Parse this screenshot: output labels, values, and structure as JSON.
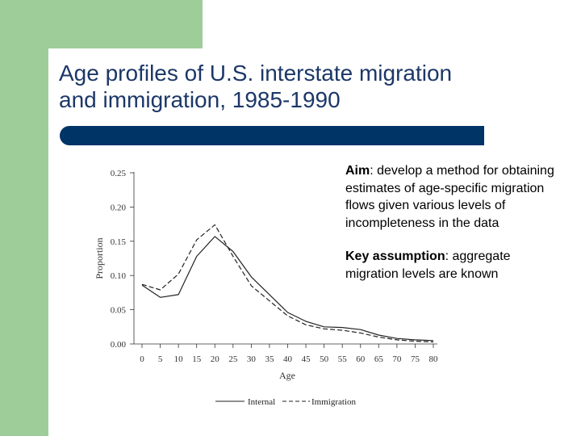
{
  "slide": {
    "title_line1": "Age profiles of U.S. interstate migration",
    "title_line2": "and immigration, 1985-1990",
    "aim_label": "Aim",
    "aim_text": ": develop a method for obtaining estimates of age-specific migration flows given various levels of incompleteness in the data",
    "key_label": "Key assumption",
    "key_text": ": aggregate migration levels are known"
  },
  "colors": {
    "accent_green": "#9fcd99",
    "rule_navy": "#003366",
    "title_blue": "#1c3768"
  },
  "chart_data": {
    "type": "line",
    "xlabel": "Age",
    "ylabel": "Proportion",
    "x": [
      0,
      5,
      10,
      15,
      20,
      25,
      30,
      35,
      40,
      45,
      50,
      55,
      60,
      65,
      70,
      75,
      80
    ],
    "xticks": [
      "0",
      "5",
      "10",
      "15",
      "20",
      "25",
      "30",
      "35",
      "40",
      "45",
      "50",
      "55",
      "60",
      "65",
      "70",
      "75",
      "80"
    ],
    "yticks": [
      "0.00",
      "0.05",
      "0.10",
      "0.15",
      "0.20",
      "0.25"
    ],
    "ylim": [
      0,
      0.25
    ],
    "series": [
      {
        "name": "Internal",
        "style": "solid",
        "values": [
          0.086,
          0.068,
          0.072,
          0.128,
          0.157,
          0.135,
          0.098,
          0.072,
          0.046,
          0.033,
          0.025,
          0.024,
          0.021,
          0.013,
          0.008,
          0.006,
          0.005
        ]
      },
      {
        "name": "Immigration",
        "style": "dashed",
        "values": [
          0.087,
          0.079,
          0.102,
          0.152,
          0.174,
          0.128,
          0.085,
          0.063,
          0.041,
          0.028,
          0.022,
          0.02,
          0.016,
          0.01,
          0.006,
          0.004,
          0.003
        ]
      }
    ],
    "legend": {
      "position": "bottom",
      "items": [
        "Internal",
        "Immigration"
      ]
    }
  }
}
